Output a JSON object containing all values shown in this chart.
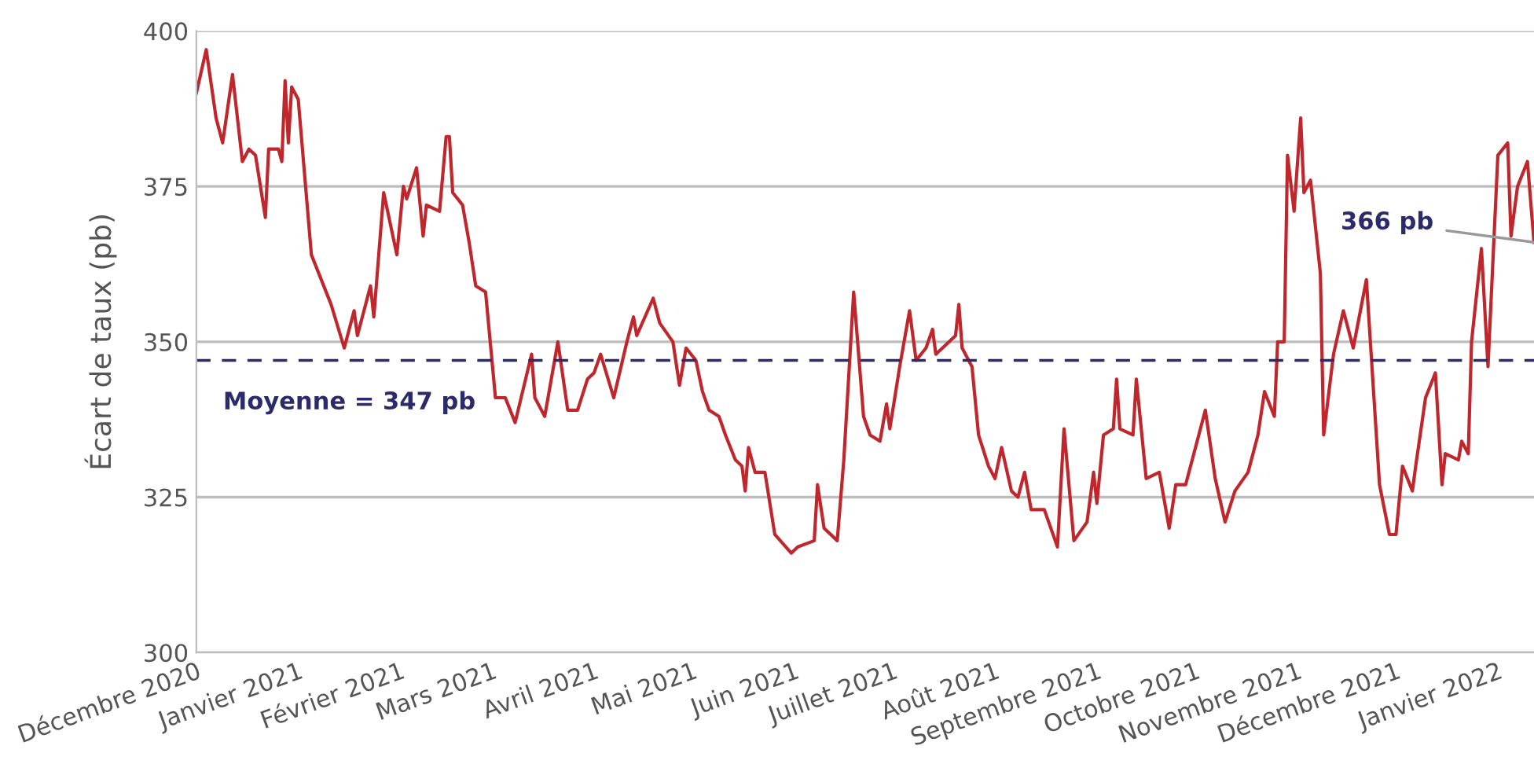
{
  "chart_data": {
    "type": "line",
    "ylabel": "Écart de taux (pb)",
    "x": [
      "2020-12-01",
      "2020-12-04",
      "2020-12-07",
      "2020-12-09",
      "2020-12-12",
      "2020-12-15",
      "2020-12-17",
      "2020-12-19",
      "2020-12-22",
      "2020-12-23",
      "2020-12-26",
      "2020-12-27",
      "2020-12-28",
      "2020-12-29",
      "2020-12-30",
      "2021-01-01",
      "2021-01-05",
      "2021-01-11",
      "2021-01-15",
      "2021-01-18",
      "2021-01-19",
      "2021-01-23",
      "2021-01-24",
      "2021-01-27",
      "2021-01-31",
      "2021-02-02",
      "2021-02-03",
      "2021-02-06",
      "2021-02-08",
      "2021-02-09",
      "2021-02-13",
      "2021-02-15",
      "2021-02-16",
      "2021-02-17",
      "2021-02-20",
      "2021-02-22",
      "2021-02-24",
      "2021-02-27",
      "2021-03-02",
      "2021-03-05",
      "2021-03-08",
      "2021-03-13",
      "2021-03-14",
      "2021-03-17",
      "2021-03-21",
      "2021-03-24",
      "2021-03-27",
      "2021-03-30",
      "2021-04-01",
      "2021-04-03",
      "2021-04-07",
      "2021-04-11",
      "2021-04-13",
      "2021-04-14",
      "2021-04-19",
      "2021-04-21",
      "2021-04-25",
      "2021-04-27",
      "2021-04-29",
      "2021-05-02",
      "2021-05-04",
      "2021-05-06",
      "2021-05-09",
      "2021-05-11",
      "2021-05-14",
      "2021-05-16",
      "2021-05-17",
      "2021-05-18",
      "2021-05-20",
      "2021-05-23",
      "2021-05-26",
      "2021-05-31",
      "2021-06-02",
      "2021-06-07",
      "2021-06-08",
      "2021-06-10",
      "2021-06-14",
      "2021-06-16",
      "2021-06-19",
      "2021-06-22",
      "2021-06-24",
      "2021-06-27",
      "2021-06-29",
      "2021-06-30",
      "2021-07-03",
      "2021-07-06",
      "2021-07-08",
      "2021-07-11",
      "2021-07-13",
      "2021-07-14",
      "2021-07-20",
      "2021-07-21",
      "2021-07-22",
      "2021-07-25",
      "2021-07-27",
      "2021-07-30",
      "2021-08-01",
      "2021-08-03",
      "2021-08-06",
      "2021-08-08",
      "2021-08-10",
      "2021-08-12",
      "2021-08-16",
      "2021-08-20",
      "2021-08-22",
      "2021-08-25",
      "2021-08-29",
      "2021-08-31",
      "2021-09-01",
      "2021-09-03",
      "2021-09-06",
      "2021-09-07",
      "2021-09-08",
      "2021-09-12",
      "2021-09-13",
      "2021-09-16",
      "2021-09-20",
      "2021-09-23",
      "2021-09-25",
      "2021-09-28",
      "2021-10-02",
      "2021-10-04",
      "2021-10-07",
      "2021-10-10",
      "2021-10-13",
      "2021-10-17",
      "2021-10-20",
      "2021-10-22",
      "2021-10-25",
      "2021-10-26",
      "2021-10-28",
      "2021-10-29",
      "2021-10-31",
      "2021-11-02",
      "2021-11-03",
      "2021-11-05",
      "2021-11-08",
      "2021-11-09",
      "2021-11-12",
      "2021-11-15",
      "2021-11-18",
      "2021-11-22",
      "2021-11-26",
      "2021-11-29",
      "2021-12-01",
      "2021-12-03",
      "2021-12-06",
      "2021-12-07",
      "2021-12-10",
      "2021-12-13",
      "2021-12-15",
      "2021-12-16",
      "2021-12-20",
      "2021-12-21",
      "2021-12-23",
      "2021-12-24",
      "2021-12-27",
      "2021-12-29",
      "2022-01-01",
      "2022-01-04",
      "2022-01-05",
      "2022-01-07",
      "2022-01-10",
      "2022-01-12"
    ],
    "series": [
      {
        "color": "#c0272d",
        "values": [
          390,
          397,
          386,
          382,
          393,
          379,
          381,
          380,
          370,
          381,
          381,
          379,
          392,
          382,
          391,
          389,
          364,
          356,
          349,
          355,
          351,
          359,
          354,
          374,
          364,
          375,
          373,
          378,
          367,
          372,
          371,
          383,
          383,
          374,
          372,
          366,
          359,
          358,
          341,
          341,
          337,
          348,
          341,
          338,
          350,
          339,
          339,
          344,
          345,
          348,
          341,
          350,
          354,
          351,
          357,
          353,
          350,
          343,
          349,
          347,
          342,
          339,
          338,
          335,
          331,
          330,
          326,
          333,
          329,
          329,
          319,
          316,
          317,
          318,
          327,
          320,
          318,
          331,
          358,
          338,
          335,
          334,
          340,
          336,
          346,
          355,
          347,
          349,
          352,
          348,
          351,
          356,
          349,
          346,
          335,
          330,
          328,
          333,
          326,
          325,
          329,
          323,
          323,
          317,
          336,
          318,
          321,
          329,
          324,
          335,
          336,
          344,
          336,
          335,
          344,
          328,
          329,
          320,
          327,
          327,
          335,
          339,
          328,
          321,
          326,
          329,
          335,
          342,
          338,
          350,
          350,
          380,
          371,
          386,
          374,
          376,
          361,
          335,
          348,
          355,
          349,
          360,
          327,
          319,
          319,
          330,
          326,
          330,
          341,
          345,
          327,
          332,
          331,
          334,
          332,
          350,
          365,
          346,
          380,
          382,
          367,
          375,
          379,
          366
        ]
      }
    ],
    "xlim": [
      "2020-12-01",
      "2022-01-12"
    ],
    "xticks": [
      {
        "value": "2020-12-01",
        "label": "Décembre 2020"
      },
      {
        "value": "2021-01-01",
        "label": "Janvier 2021"
      },
      {
        "value": "2021-02-01",
        "label": "Février 2021"
      },
      {
        "value": "2021-03-01",
        "label": "Mars 2021"
      },
      {
        "value": "2021-04-01",
        "label": "Avril 2021"
      },
      {
        "value": "2021-05-01",
        "label": "Mai 2021"
      },
      {
        "value": "2021-06-01",
        "label": "Juin 2021"
      },
      {
        "value": "2021-07-01",
        "label": "Juillet 2021"
      },
      {
        "value": "2021-08-01",
        "label": "Août 2021"
      },
      {
        "value": "2021-09-01",
        "label": "Septembre 2021"
      },
      {
        "value": "2021-10-01",
        "label": "Octobre 2021"
      },
      {
        "value": "2021-11-01",
        "label": "Novembre 2021"
      },
      {
        "value": "2021-12-01",
        "label": "Décembre 2021"
      },
      {
        "value": "2022-01-01",
        "label": "Janvier 2022"
      }
    ],
    "ylim": [
      300,
      400
    ],
    "yticks": [
      300,
      325,
      350,
      375,
      400
    ],
    "grid": "y",
    "ref_lines": [
      {
        "axis": "y",
        "value": 347,
        "label": "Moyenne = 347 pb",
        "color": "#2b2a6b",
        "line_style": "dashed"
      }
    ],
    "annotations": [
      {
        "text": "366 pb",
        "x": "2022-01-12",
        "y": 366
      }
    ]
  }
}
